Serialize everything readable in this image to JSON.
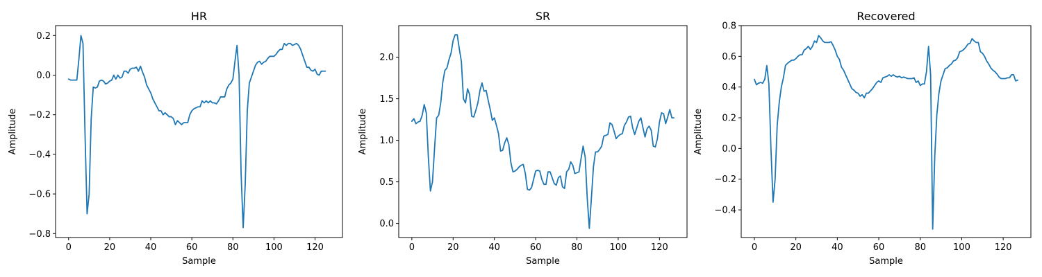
{
  "chart_data": [
    {
      "type": "line",
      "title": "HR",
      "xlabel": "Sample",
      "ylabel": "Amplitude",
      "xlim": [
        -6.35,
        133.35
      ],
      "ylim": [
        -0.82,
        0.25
      ],
      "xticks": [
        0,
        20,
        40,
        60,
        80,
        100,
        120
      ],
      "yticks": [
        -0.8,
        -0.6,
        -0.4,
        -0.2,
        0.0,
        0.2
      ],
      "yformat": 1,
      "color": "#1f77b4",
      "series": [
        {
          "values": [
            -0.02,
            -0.025,
            -0.025,
            -0.025,
            -0.025,
            0.08,
            0.2,
            0.16,
            -0.3,
            -0.7,
            -0.6,
            -0.22,
            -0.06,
            -0.065,
            -0.06,
            -0.03,
            -0.025,
            -0.03,
            -0.045,
            -0.04,
            -0.03,
            -0.025,
            0.0,
            -0.02,
            0.0,
            -0.015,
            -0.01,
            0.02,
            0.02,
            0.01,
            0.03,
            0.035,
            0.035,
            0.04,
            0.02,
            0.045,
            0.015,
            -0.01,
            -0.05,
            -0.07,
            -0.09,
            -0.12,
            -0.14,
            -0.16,
            -0.18,
            -0.18,
            -0.2,
            -0.19,
            -0.2,
            -0.21,
            -0.21,
            -0.22,
            -0.25,
            -0.23,
            -0.24,
            -0.25,
            -0.24,
            -0.24,
            -0.24,
            -0.2,
            -0.18,
            -0.17,
            -0.165,
            -0.16,
            -0.16,
            -0.13,
            -0.14,
            -0.13,
            -0.14,
            -0.13,
            -0.14,
            -0.14,
            -0.145,
            -0.13,
            -0.11,
            -0.11,
            -0.11,
            -0.07,
            -0.05,
            -0.04,
            -0.02,
            0.07,
            0.15,
            0.0,
            -0.5,
            -0.77,
            -0.55,
            -0.18,
            -0.04,
            -0.01,
            0.02,
            0.05,
            0.065,
            0.07,
            0.055,
            0.065,
            0.07,
            0.085,
            0.095,
            0.095,
            0.095,
            0.105,
            0.12,
            0.13,
            0.13,
            0.16,
            0.15,
            0.16,
            0.16,
            0.15,
            0.155,
            0.16,
            0.15,
            0.13,
            0.1,
            0.07,
            0.04,
            0.04,
            0.025,
            0.02,
            0.03,
            0.005,
            0.0,
            0.02,
            0.02,
            0.02
          ]
        }
      ]
    },
    {
      "type": "line",
      "title": "SR",
      "xlabel": "Sample",
      "ylabel": "Amplitude",
      "xlim": [
        -6.35,
        133.35
      ],
      "ylim": [
        -0.17,
        2.38
      ],
      "xticks": [
        0,
        20,
        40,
        60,
        80,
        100,
        120
      ],
      "yticks": [
        0.0,
        0.5,
        1.0,
        1.5,
        2.0
      ],
      "yformat": 1,
      "color": "#1f77b4",
      "series": [
        {
          "values": [
            1.23,
            1.26,
            1.2,
            1.22,
            1.23,
            1.3,
            1.43,
            1.33,
            0.8,
            0.39,
            0.5,
            0.9,
            1.27,
            1.3,
            1.45,
            1.7,
            1.84,
            1.87,
            1.97,
            2.05,
            2.2,
            2.27,
            2.27,
            2.1,
            1.95,
            1.5,
            1.45,
            1.62,
            1.55,
            1.29,
            1.28,
            1.36,
            1.45,
            1.6,
            1.69,
            1.59,
            1.6,
            1.48,
            1.37,
            1.24,
            1.27,
            1.18,
            1.08,
            0.87,
            0.88,
            0.97,
            1.03,
            0.95,
            0.73,
            0.62,
            0.63,
            0.65,
            0.68,
            0.7,
            0.71,
            0.6,
            0.41,
            0.4,
            0.43,
            0.53,
            0.63,
            0.64,
            0.63,
            0.53,
            0.47,
            0.47,
            0.62,
            0.62,
            0.55,
            0.48,
            0.46,
            0.55,
            0.57,
            0.44,
            0.42,
            0.62,
            0.65,
            0.74,
            0.7,
            0.6,
            0.61,
            0.62,
            0.78,
            0.93,
            0.8,
            0.3,
            -0.06,
            0.3,
            0.68,
            0.86,
            0.86,
            0.89,
            0.93,
            1.05,
            1.06,
            1.07,
            1.21,
            1.19,
            1.11,
            1.02,
            1.05,
            1.07,
            1.08,
            1.18,
            1.22,
            1.28,
            1.29,
            1.15,
            1.07,
            1.15,
            1.23,
            1.27,
            1.15,
            1.04,
            1.14,
            1.17,
            1.12,
            0.93,
            0.92,
            1.02,
            1.22,
            1.33,
            1.32,
            1.2,
            1.28,
            1.37,
            1.27,
            1.27
          ]
        }
      ]
    },
    {
      "type": "line",
      "title": "Recovered",
      "xlabel": "Sample",
      "ylabel": "Amplitude",
      "xlim": [
        -6.35,
        133.35
      ],
      "ylim": [
        -0.58,
        0.8
      ],
      "xticks": [
        0,
        20,
        40,
        60,
        80,
        100,
        120
      ],
      "yticks": [
        -0.4,
        -0.2,
        0.0,
        0.2,
        0.4,
        0.6,
        0.8
      ],
      "yformat": 1,
      "color": "#1f77b4",
      "series": [
        {
          "values": [
            0.45,
            0.415,
            0.425,
            0.43,
            0.425,
            0.45,
            0.54,
            0.42,
            0.0,
            -0.35,
            -0.2,
            0.15,
            0.3,
            0.4,
            0.46,
            0.54,
            0.555,
            0.565,
            0.575,
            0.575,
            0.585,
            0.6,
            0.61,
            0.61,
            0.64,
            0.65,
            0.665,
            0.645,
            0.665,
            0.7,
            0.69,
            0.735,
            0.72,
            0.7,
            0.69,
            0.69,
            0.69,
            0.695,
            0.67,
            0.64,
            0.6,
            0.58,
            0.53,
            0.51,
            0.48,
            0.45,
            0.42,
            0.39,
            0.38,
            0.365,
            0.36,
            0.34,
            0.35,
            0.33,
            0.36,
            0.36,
            0.375,
            0.39,
            0.41,
            0.43,
            0.44,
            0.43,
            0.46,
            0.465,
            0.47,
            0.48,
            0.47,
            0.48,
            0.47,
            0.465,
            0.47,
            0.46,
            0.465,
            0.46,
            0.455,
            0.455,
            0.455,
            0.46,
            0.43,
            0.44,
            0.41,
            0.42,
            0.42,
            0.5,
            0.665,
            0.48,
            -0.525,
            -0.05,
            0.22,
            0.36,
            0.44,
            0.48,
            0.52,
            0.525,
            0.54,
            0.55,
            0.57,
            0.575,
            0.59,
            0.63,
            0.635,
            0.645,
            0.66,
            0.68,
            0.685,
            0.715,
            0.7,
            0.69,
            0.69,
            0.63,
            0.62,
            0.6,
            0.57,
            0.55,
            0.525,
            0.51,
            0.5,
            0.485,
            0.465,
            0.455,
            0.455,
            0.455,
            0.46,
            0.46,
            0.48,
            0.48,
            0.44,
            0.445
          ]
        }
      ]
    }
  ]
}
